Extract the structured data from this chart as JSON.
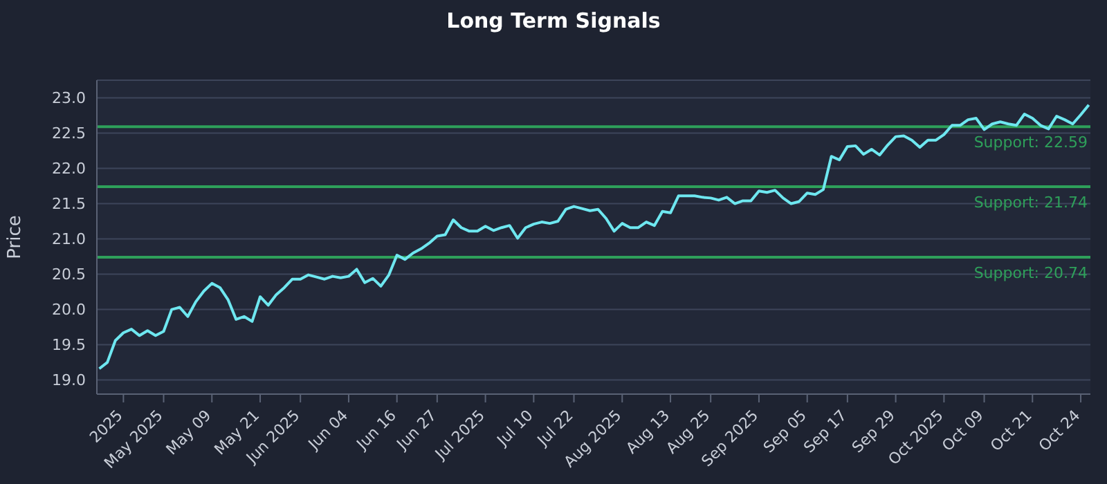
{
  "chart_data": {
    "type": "line",
    "title": "Long Term Signals",
    "ylabel": "Price",
    "categories": [
      null,
      null,
      null,
      "2025",
      null,
      null,
      null,
      null,
      "May 2025",
      null,
      null,
      null,
      null,
      null,
      "May 09",
      null,
      null,
      null,
      null,
      null,
      "May 21",
      null,
      null,
      null,
      null,
      "Jun 2025",
      null,
      null,
      null,
      null,
      null,
      "Jun 04",
      null,
      null,
      null,
      null,
      null,
      "Jun 16",
      null,
      null,
      null,
      null,
      "Jun 27",
      null,
      null,
      null,
      null,
      null,
      "Jul 2025",
      null,
      null,
      null,
      null,
      null,
      "Jul 10",
      null,
      null,
      null,
      null,
      "Jul 22",
      null,
      null,
      null,
      null,
      null,
      "Aug 2025",
      null,
      null,
      null,
      null,
      null,
      "Aug 13",
      null,
      null,
      null,
      null,
      "Aug 25",
      null,
      null,
      null,
      null,
      null,
      "Sep 2025",
      null,
      null,
      null,
      null,
      null,
      "Sep 05",
      null,
      null,
      null,
      null,
      "Sep 17",
      null,
      null,
      null,
      null,
      null,
      "Sep 29",
      null,
      null,
      null,
      null,
      null,
      "Oct 2025",
      null,
      null,
      null,
      null,
      "Oct 09",
      null,
      null,
      null,
      null,
      null,
      "Oct 21",
      null,
      null,
      null,
      null,
      null,
      "Oct 24",
      null
    ],
    "series": [
      {
        "color": "#6ee7f0",
        "values": [
          19.16,
          19.25,
          19.56,
          19.67,
          19.72,
          19.63,
          19.7,
          19.63,
          19.69,
          20.0,
          20.03,
          19.9,
          20.11,
          20.26,
          20.37,
          20.31,
          20.14,
          19.86,
          19.9,
          19.83,
          20.18,
          20.06,
          20.21,
          20.31,
          20.43,
          20.43,
          20.49,
          20.46,
          20.43,
          20.47,
          20.45,
          20.47,
          20.57,
          20.38,
          20.44,
          20.33,
          20.49,
          20.77,
          20.71,
          20.8,
          20.86,
          20.94,
          21.04,
          21.06,
          21.27,
          21.16,
          21.11,
          21.11,
          21.18,
          21.12,
          21.16,
          21.19,
          21.01,
          21.16,
          21.21,
          21.24,
          21.22,
          21.25,
          21.42,
          21.46,
          21.43,
          21.4,
          21.42,
          21.29,
          21.11,
          21.22,
          21.16,
          21.16,
          21.24,
          21.19,
          21.39,
          21.37,
          21.61,
          21.61,
          21.61,
          21.59,
          21.58,
          21.55,
          21.59,
          21.5,
          21.54,
          21.54,
          21.68,
          21.66,
          21.69,
          21.58,
          21.5,
          21.53,
          21.65,
          21.63,
          21.7,
          22.17,
          22.12,
          22.31,
          22.32,
          22.2,
          22.27,
          22.19,
          22.33,
          22.45,
          22.46,
          22.4,
          22.3,
          22.4,
          22.4,
          22.48,
          22.61,
          22.61,
          22.69,
          22.71,
          22.55,
          22.63,
          22.66,
          22.63,
          22.61,
          22.77,
          22.71,
          22.61,
          22.56,
          22.74,
          22.69,
          22.63,
          22.76,
          22.9
        ]
      }
    ],
    "ylim": [
      18.8,
      23.25
    ],
    "yticks": [
      {
        "value": 19,
        "label": "19.0"
      },
      {
        "value": 19.5,
        "label": "19.5"
      },
      {
        "value": 20,
        "label": "20.0"
      },
      {
        "value": 20.5,
        "label": "20.5"
      },
      {
        "value": 21,
        "label": "21.0"
      },
      {
        "value": 21.5,
        "label": "21.5"
      },
      {
        "value": 22,
        "label": "22.0"
      },
      {
        "value": 22.5,
        "label": "22.5"
      },
      {
        "value": 23,
        "label": "23.0"
      }
    ],
    "ref_lines": [
      {
        "axis": "y",
        "value": 22.59,
        "label": "Support: 22.59",
        "color": "#2ea05a"
      },
      {
        "axis": "y",
        "value": 21.74,
        "label": "Support: 21.74",
        "color": "#2ea05a"
      },
      {
        "axis": "y",
        "value": 20.74,
        "label": "Support: 20.74",
        "color": "#2ea05a"
      }
    ],
    "grid": "y",
    "marker": "none",
    "line_style": "solid"
  }
}
